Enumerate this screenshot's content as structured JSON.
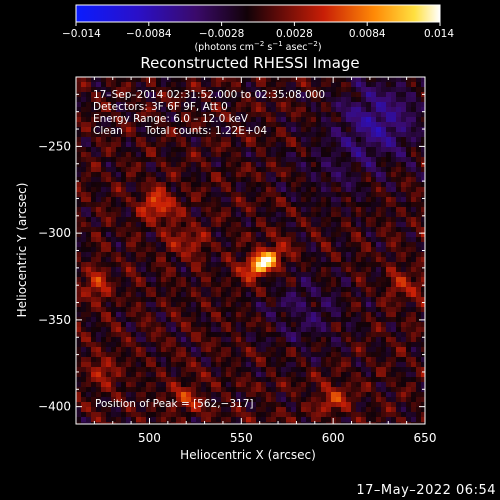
{
  "chart_data": {
    "type": "heatmap",
    "title": "Reconstructed RHESSI Image",
    "xlabel": "Heliocentric X (arcsec)",
    "ylabel": "Heliocentric Y (arcsec)",
    "xlim": [
      460,
      650
    ],
    "ylim": [
      -410,
      -210
    ],
    "x_ticks": [
      500,
      550,
      600,
      650
    ],
    "x_tick_labels": [
      "500",
      "550",
      "600",
      "650"
    ],
    "y_ticks": [
      -250,
      -300,
      -350,
      -400
    ],
    "y_tick_labels": [
      "−250",
      "−300",
      "−350",
      "−400"
    ],
    "colorscale": "red-temperature",
    "colorbar": {
      "range": [
        -0.014,
        0.014
      ],
      "ticks": [
        -0.014,
        -0.0084,
        -0.0028,
        0.0028,
        0.0084,
        0.014
      ],
      "tick_labels": [
        "−0.014",
        "−0.0084",
        "−0.0028",
        "0.0028",
        "0.0084",
        "0.014"
      ],
      "units_prefix": "(photons cm",
      "units_exp1": "−2",
      "units_mid1": " s",
      "units_exp2": "−1",
      "units_mid2": " asec",
      "units_exp3": "−2",
      "units_suffix": ")"
    },
    "info_lines": [
      "17–Sep–2014 02:31:52.000 to 02:35:08.000",
      "Detectors: 3F 6F 9F, Att 0",
      "Energy Range: 6.0 – 12.0 keV"
    ],
    "clean_label": "Clean",
    "total_counts_label": "Total counts: 1.22E+04",
    "peak_label": "Position of Peak = [562,−317]",
    "peak": [
      562,
      -317
    ],
    "sources": [
      {
        "x": 562,
        "y": -317,
        "amplitude": 0.014
      },
      {
        "x": 505,
        "y": -284,
        "amplitude": 0.0065
      },
      {
        "x": 470,
        "y": -330,
        "amplitude": 0.0045
      },
      {
        "x": 520,
        "y": -305,
        "amplitude": 0.004
      },
      {
        "x": 640,
        "y": -330,
        "amplitude": 0.004
      },
      {
        "x": 600,
        "y": -395,
        "amplitude": 0.0045
      },
      {
        "x": 520,
        "y": -395,
        "amplitude": 0.004
      },
      {
        "x": 475,
        "y": -380,
        "amplitude": 0.0035
      }
    ],
    "negative_regions": [
      {
        "x": 625,
        "y": -235,
        "amplitude": 0.006
      },
      {
        "x": 585,
        "y": -345,
        "amplitude": 0.003
      },
      {
        "x": 600,
        "y": -265,
        "amplitude": 0.002
      }
    ],
    "grid": false
  },
  "footer": {
    "timestamp": "17–May–2022 06:54"
  }
}
